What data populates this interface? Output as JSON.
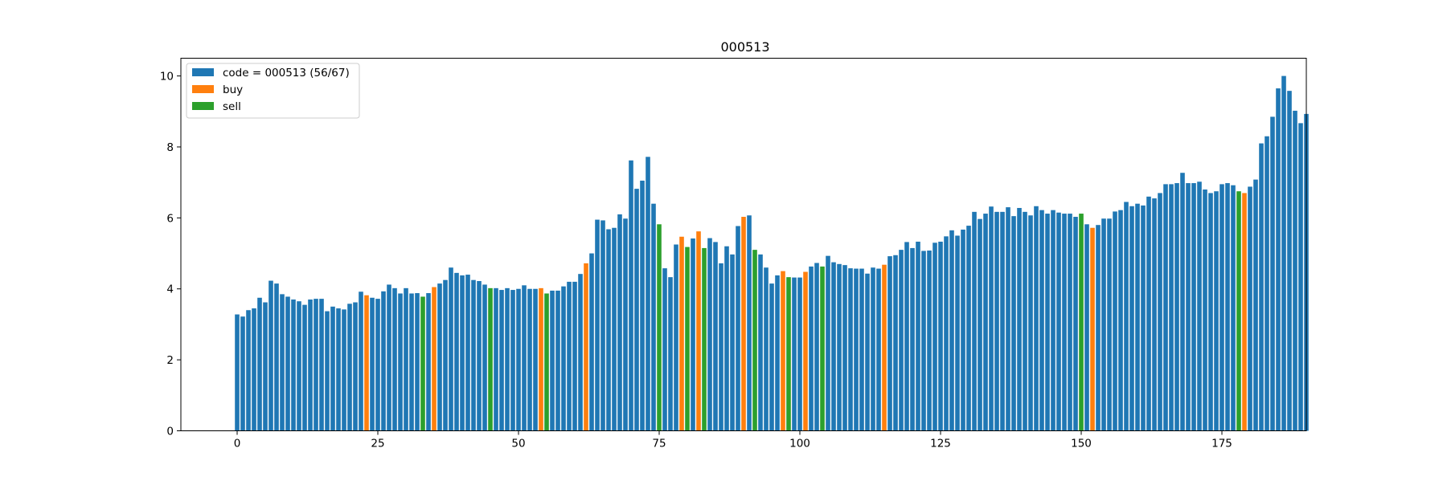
{
  "chart_data": {
    "type": "bar",
    "title": "000513",
    "xlabel": "",
    "ylabel": "",
    "xlim": [
      -10,
      190
    ],
    "ylim": [
      0,
      10.5
    ],
    "xticks": [
      0,
      25,
      50,
      75,
      100,
      125,
      150,
      175
    ],
    "yticks": [
      0,
      2,
      4,
      6,
      8,
      10
    ],
    "grid": false,
    "legend_position": "top-left",
    "colors": {
      "code": "#1f77b4",
      "buy": "#ff7f0e",
      "sell": "#2ca02c"
    },
    "legend": [
      {
        "key": "code",
        "label": "code = 000513 (56/67)"
      },
      {
        "key": "buy",
        "label": "buy"
      },
      {
        "key": "sell",
        "label": "sell"
      }
    ],
    "buy_indices": [
      23,
      35,
      54,
      62,
      79,
      82,
      90,
      97,
      101,
      115,
      152,
      179
    ],
    "sell_indices": [
      33,
      45,
      55,
      75,
      80,
      83,
      92,
      98,
      104,
      150,
      178
    ],
    "values": [
      3.28,
      3.22,
      3.4,
      3.45,
      3.75,
      3.62,
      4.23,
      4.15,
      3.85,
      3.78,
      3.7,
      3.65,
      3.55,
      3.7,
      3.72,
      3.72,
      3.37,
      3.5,
      3.45,
      3.42,
      3.58,
      3.62,
      3.92,
      3.82,
      3.75,
      3.72,
      3.93,
      4.12,
      4.02,
      3.87,
      4.02,
      3.87,
      3.88,
      3.78,
      3.88,
      4.05,
      4.15,
      4.25,
      4.6,
      4.45,
      4.38,
      4.4,
      4.25,
      4.22,
      4.12,
      4.02,
      4.02,
      3.97,
      4.02,
      3.97,
      4.0,
      4.1,
      4.0,
      4.0,
      4.02,
      3.87,
      3.95,
      3.95,
      4.07,
      4.2,
      4.2,
      4.42,
      4.72,
      5.0,
      5.95,
      5.93,
      5.68,
      5.72,
      6.1,
      5.98,
      7.62,
      6.82,
      7.05,
      7.72,
      6.4,
      5.82,
      4.58,
      4.33,
      5.25,
      5.47,
      5.18,
      5.42,
      5.62,
      5.15,
      5.43,
      5.32,
      4.72,
      5.2,
      4.97,
      5.77,
      6.03,
      6.07,
      5.1,
      4.97,
      4.6,
      4.15,
      4.38,
      4.5,
      4.33,
      4.32,
      4.32,
      4.48,
      4.63,
      4.73,
      4.63,
      4.93,
      4.75,
      4.7,
      4.67,
      4.58,
      4.57,
      4.57,
      4.43,
      4.6,
      4.57,
      4.68,
      4.92,
      4.95,
      5.1,
      5.32,
      5.15,
      5.33,
      5.07,
      5.08,
      5.3,
      5.33,
      5.48,
      5.65,
      5.5,
      5.67,
      5.78,
      6.17,
      5.97,
      6.12,
      6.32,
      6.17,
      6.17,
      6.3,
      6.05,
      6.28,
      6.17,
      6.07,
      6.33,
      6.22,
      6.12,
      6.22,
      6.15,
      6.12,
      6.12,
      6.03,
      6.12,
      5.82,
      5.72,
      5.8,
      5.98,
      5.98,
      6.18,
      6.22,
      6.45,
      6.33,
      6.4,
      6.35,
      6.6,
      6.55,
      6.7,
      6.95,
      6.95,
      6.98,
      7.27,
      6.98,
      6.98,
      7.02,
      6.8,
      6.7,
      6.75,
      6.95,
      6.98,
      6.92,
      6.75,
      6.7,
      6.88,
      7.08,
      8.1,
      8.3,
      8.85,
      9.65,
      10.0,
      9.58,
      9.02,
      8.67,
      8.93
    ]
  }
}
